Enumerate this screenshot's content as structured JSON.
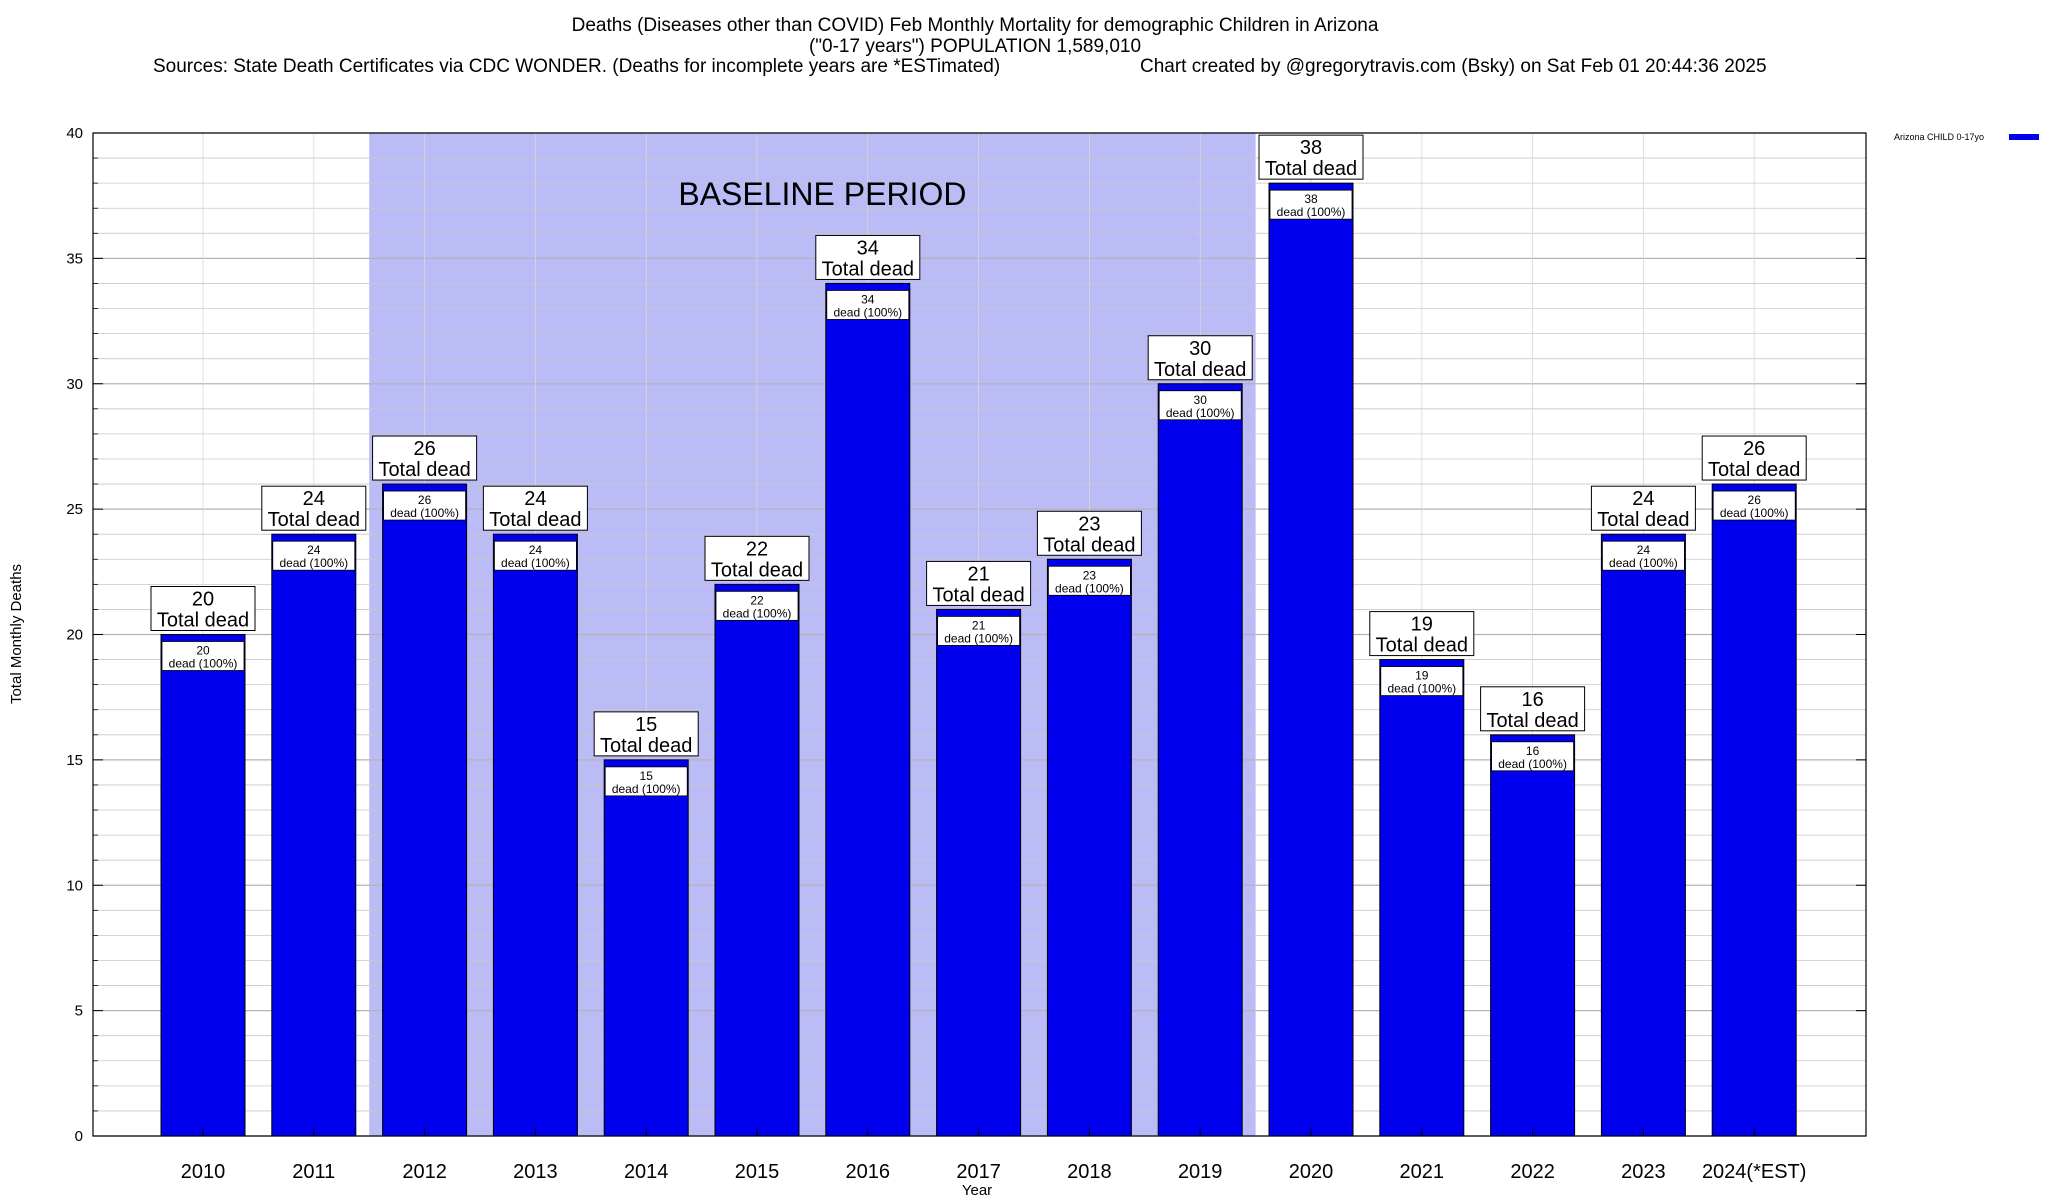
{
  "title": {
    "line1": "Deaths (Diseases other than COVID) Feb Monthly Mortality for demographic Children in Arizona",
    "line2": "(\"0-17 years\") POPULATION 1,589,010",
    "line3_left": "Sources: State Death Certificates via CDC WONDER. (Deaths for incomplete years are *ESTimated)",
    "line3_right": "Chart created by @gregorytravis.com (Bsky) on Sat Feb 01 20:44:36 2025"
  },
  "baseline_label": "BASELINE PERIOD",
  "colors": {
    "bar": "#0000ee",
    "baseline_band": "#bbbbf6",
    "grid": "#c8c8c8"
  },
  "chart_data": {
    "type": "bar",
    "title": "Deaths (Diseases other than COVID) Feb Monthly Mortality for demographic Children in Arizona",
    "xlabel": "Year",
    "ylabel": "Total Monthly Deaths",
    "ylim": [
      0,
      40
    ],
    "yticks": [
      0,
      5,
      10,
      15,
      20,
      25,
      30,
      35,
      40
    ],
    "grid": true,
    "legend_position": "top-right",
    "categories": [
      "2010",
      "2011",
      "2012",
      "2013",
      "2014",
      "2015",
      "2016",
      "2017",
      "2018",
      "2019",
      "2020",
      "2021",
      "2022",
      "2023",
      "2024(*EST)"
    ],
    "series": [
      {
        "name": "Arizona CHILD 0-17yo",
        "values": [
          20,
          24,
          26,
          24,
          15,
          22,
          34,
          21,
          23,
          30,
          38,
          19,
          16,
          24,
          26
        ]
      }
    ],
    "baseline_period": [
      "2012",
      "2019"
    ],
    "top_label_suffix": "Total dead",
    "inner_label_suffix": "dead (100%)"
  }
}
